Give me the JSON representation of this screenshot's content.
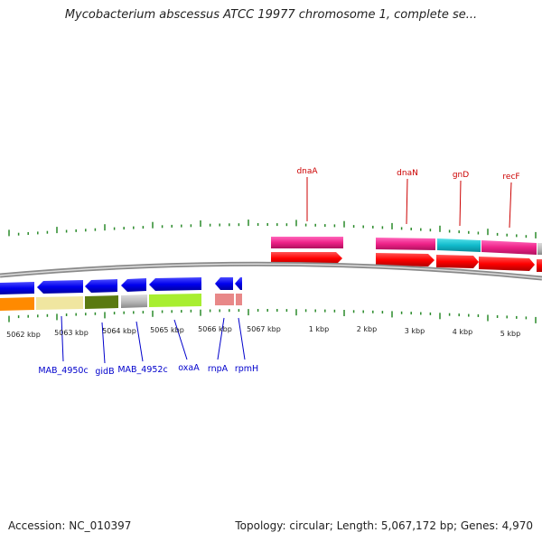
{
  "title": "Mycobacterium abscessus ATCC 19977 chromosome 1, complete se...",
  "footer": {
    "accession": "Accession: NC_010397",
    "topology": "Topology: circular; Length: 5,067,172 bp; Genes: 4,970"
  },
  "colors": {
    "tick": "#2a8a2a",
    "forward_label": "#cc0000",
    "reverse_label": "#0000cc",
    "backbone": "#808080",
    "forward_cds": "#ff0000",
    "reverse_cds": "#0000ee",
    "forward_gene": "#ee2288"
  },
  "scale_labels": [
    "5062 kbp",
    "5063 kbp",
    "5064 kbp",
    "5065 kbp",
    "5066 kbp",
    "5067 kbp",
    "1 kbp",
    "2 kbp",
    "3 kbp",
    "4 kbp",
    "5 kbp"
  ],
  "forward_genes": [
    "dnaA",
    "dnaN",
    "gnD",
    "recF"
  ],
  "reverse_genes": [
    "MAB_4950c",
    "gidB",
    "MAB_4952c",
    "oxaA",
    "rnpA",
    "rpmH"
  ]
}
